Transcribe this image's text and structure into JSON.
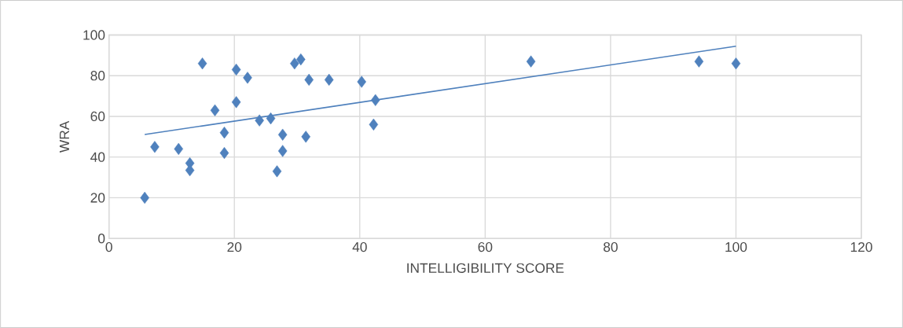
{
  "chart_data": {
    "type": "scatter",
    "xlabel": "INTELLIGIBILITY SCORE",
    "ylabel": "WRA",
    "xlim": [
      0,
      120
    ],
    "xticks": [
      0,
      20,
      40,
      60,
      80,
      100,
      120
    ],
    "ylim": [
      0,
      100
    ],
    "yticks": [
      0,
      20,
      40,
      60,
      80,
      100
    ],
    "grid": true,
    "marker": "diamond",
    "series": [
      {
        "color": "#4f81bd",
        "x": [
          5.7,
          7.3,
          11.1,
          12.9,
          12.9,
          14.9,
          16.9,
          18.4,
          18.4,
          20.3,
          20.3,
          22.1,
          24.0,
          25.8,
          27.7,
          27.7,
          26.8,
          29.6,
          30.6,
          31.9,
          31.4,
          35.1,
          40.3,
          42.5,
          42.2,
          67.3,
          94.1,
          100
        ],
        "values": [
          20,
          45,
          44,
          37,
          33.5,
          86,
          63,
          52,
          42,
          83,
          67,
          79,
          58,
          59,
          51,
          43,
          33,
          86,
          88,
          78,
          50,
          78,
          77,
          68,
          56,
          87,
          87,
          86
        ]
      },
      {
        "type": "line",
        "color": "#4f81bd",
        "line_style": "solid",
        "marker": "none",
        "x": [
          5.7,
          100
        ],
        "values": [
          51.1,
          94.5
        ]
      }
    ]
  }
}
